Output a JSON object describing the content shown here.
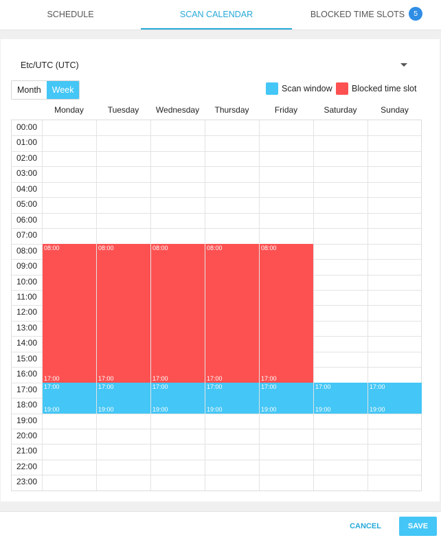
{
  "tabs": {
    "schedule": "SCHEDULE",
    "scan_calendar": "SCAN CALENDAR",
    "blocked_time_slots": "BLOCKED TIME SLOTS",
    "blocked_count": "5",
    "active": "scan_calendar"
  },
  "timezone": {
    "value": "Etc/UTC (UTC)",
    "icon": "caret-down-icon"
  },
  "view": {
    "month_label": "Month",
    "week_label": "Week",
    "active": "week"
  },
  "legend": [
    {
      "label": "Scan window",
      "color": "#44c6f6"
    },
    {
      "label": "Blocked time slot",
      "color": "#fd5151"
    }
  ],
  "days": [
    "Monday",
    "Tuesday",
    "Wednesday",
    "Thursday",
    "Friday",
    "Saturday",
    "Sunday"
  ],
  "hours": [
    "00:00",
    "01:00",
    "02:00",
    "03:00",
    "04:00",
    "05:00",
    "06:00",
    "07:00",
    "08:00",
    "09:00",
    "10:00",
    "11:00",
    "12:00",
    "13:00",
    "14:00",
    "15:00",
    "16:00",
    "17:00",
    "18:00",
    "19:00",
    "20:00",
    "21:00",
    "22:00",
    "23:00"
  ],
  "events": [
    {
      "type": "blocked",
      "day": 0,
      "start": "08:00",
      "end": "17:00"
    },
    {
      "type": "blocked",
      "day": 1,
      "start": "08:00",
      "end": "17:00"
    },
    {
      "type": "blocked",
      "day": 2,
      "start": "08:00",
      "end": "17:00"
    },
    {
      "type": "blocked",
      "day": 3,
      "start": "08:00",
      "end": "17:00"
    },
    {
      "type": "blocked",
      "day": 4,
      "start": "08:00",
      "end": "17:00"
    },
    {
      "type": "scan",
      "day": 0,
      "start": "17:00",
      "end": "19:00"
    },
    {
      "type": "scan",
      "day": 1,
      "start": "17:00",
      "end": "19:00"
    },
    {
      "type": "scan",
      "day": 2,
      "start": "17:00",
      "end": "19:00"
    },
    {
      "type": "scan",
      "day": 3,
      "start": "17:00",
      "end": "19:00"
    },
    {
      "type": "scan",
      "day": 4,
      "start": "17:00",
      "end": "19:00"
    },
    {
      "type": "scan",
      "day": 5,
      "start": "17:00",
      "end": "19:00"
    },
    {
      "type": "scan",
      "day": 6,
      "start": "17:00",
      "end": "19:00"
    }
  ],
  "footer": {
    "cancel_label": "CANCEL",
    "save_label": "SAVE"
  }
}
